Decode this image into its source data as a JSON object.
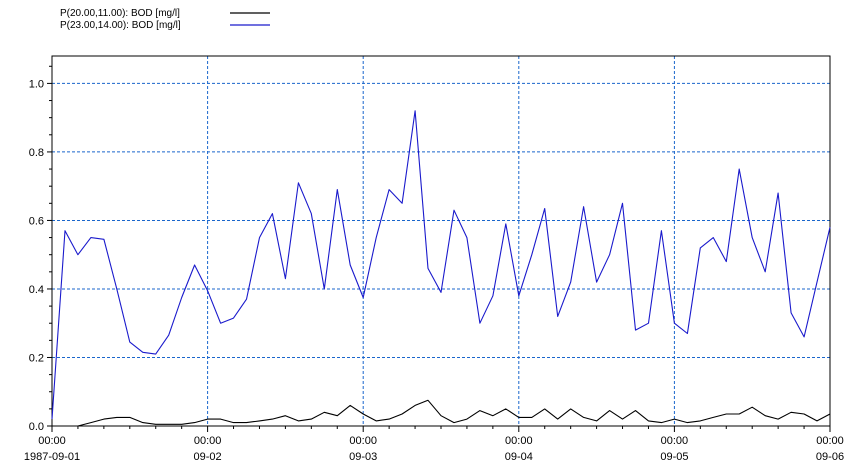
{
  "chart_data": {
    "type": "line",
    "title": "",
    "xlabel": "",
    "ylabel": "",
    "x_range": [
      "1987-09-01T00:00",
      "1987-09-06T00:00"
    ],
    "ylim": [
      0,
      1.08
    ],
    "grid": true,
    "grid_color": "#1a66cc",
    "legend_position": "top-left",
    "y_ticks": [
      {
        "value": 0,
        "label": "0.0"
      },
      {
        "value": 0.2,
        "label": "0.2"
      },
      {
        "value": 0.4,
        "label": "0.4"
      },
      {
        "value": 0.6,
        "label": "0.6"
      },
      {
        "value": 0.8,
        "label": "0.8"
      },
      {
        "value": 1.0,
        "label": "1.0"
      }
    ],
    "x_ticks": [
      {
        "time": "1987-09-01T00:00",
        "time_label": "00:00",
        "date_label": "1987-09-01"
      },
      {
        "time": "1987-09-02T00:00",
        "time_label": "00:00",
        "date_label": "09-02"
      },
      {
        "time": "1987-09-03T00:00",
        "time_label": "00:00",
        "date_label": "09-03"
      },
      {
        "time": "1987-09-04T00:00",
        "time_label": "00:00",
        "date_label": "09-04"
      },
      {
        "time": "1987-09-05T00:00",
        "time_label": "00:00",
        "date_label": "09-05"
      },
      {
        "time": "1987-09-06T00:00",
        "time_label": "00:00",
        "date_label": "09-06"
      }
    ],
    "series": [
      {
        "name": "P(20.00,11.00): BOD [mg/l]",
        "color": "#000000",
        "x": [
          "1987-09-01T00:00",
          "1987-09-01T02:00",
          "1987-09-01T04:00",
          "1987-09-01T06:00",
          "1987-09-01T08:00",
          "1987-09-01T10:00",
          "1987-09-01T12:00",
          "1987-09-01T14:00",
          "1987-09-01T16:00",
          "1987-09-01T18:00",
          "1987-09-01T20:00",
          "1987-09-01T22:00",
          "1987-09-02T00:00",
          "1987-09-02T02:00",
          "1987-09-02T04:00",
          "1987-09-02T06:00",
          "1987-09-02T08:00",
          "1987-09-02T10:00",
          "1987-09-02T12:00",
          "1987-09-02T14:00",
          "1987-09-02T16:00",
          "1987-09-02T18:00",
          "1987-09-02T20:00",
          "1987-09-02T22:00",
          "1987-09-03T00:00",
          "1987-09-03T02:00",
          "1987-09-03T04:00",
          "1987-09-03T06:00",
          "1987-09-03T08:00",
          "1987-09-03T10:00",
          "1987-09-03T12:00",
          "1987-09-03T14:00",
          "1987-09-03T16:00",
          "1987-09-03T18:00",
          "1987-09-03T20:00",
          "1987-09-03T22:00",
          "1987-09-04T00:00",
          "1987-09-04T02:00",
          "1987-09-04T04:00",
          "1987-09-04T06:00",
          "1987-09-04T08:00",
          "1987-09-04T10:00",
          "1987-09-04T12:00",
          "1987-09-04T14:00",
          "1987-09-04T16:00",
          "1987-09-04T18:00",
          "1987-09-04T20:00",
          "1987-09-04T22:00",
          "1987-09-05T00:00",
          "1987-09-05T02:00",
          "1987-09-05T04:00",
          "1987-09-05T06:00",
          "1987-09-05T08:00",
          "1987-09-05T10:00",
          "1987-09-05T12:00",
          "1987-09-05T14:00",
          "1987-09-05T16:00",
          "1987-09-05T18:00",
          "1987-09-05T20:00",
          "1987-09-05T22:00",
          "1987-09-06T00:00"
        ],
        "y": [
          0.0,
          0.0,
          0.0,
          0.01,
          0.02,
          0.025,
          0.025,
          0.01,
          0.005,
          0.005,
          0.005,
          0.01,
          0.02,
          0.02,
          0.01,
          0.01,
          0.015,
          0.02,
          0.03,
          0.015,
          0.02,
          0.04,
          0.03,
          0.06,
          0.035,
          0.015,
          0.02,
          0.035,
          0.06,
          0.075,
          0.03,
          0.01,
          0.02,
          0.045,
          0.03,
          0.05,
          0.025,
          0.025,
          0.05,
          0.02,
          0.05,
          0.025,
          0.015,
          0.045,
          0.02,
          0.045,
          0.015,
          0.01,
          0.02,
          0.01,
          0.015,
          0.025,
          0.035,
          0.035,
          0.055,
          0.03,
          0.02,
          0.04,
          0.035,
          0.015,
          0.035
        ]
      },
      {
        "name": "P(23.00,14.00): BOD [mg/l]",
        "color": "#1a1acc",
        "x": [
          "1987-09-01T00:00",
          "1987-09-01T02:00",
          "1987-09-01T04:00",
          "1987-09-01T06:00",
          "1987-09-01T08:00",
          "1987-09-01T10:00",
          "1987-09-01T12:00",
          "1987-09-01T14:00",
          "1987-09-01T16:00",
          "1987-09-01T18:00",
          "1987-09-01T20:00",
          "1987-09-01T22:00",
          "1987-09-02T00:00",
          "1987-09-02T02:00",
          "1987-09-02T04:00",
          "1987-09-02T06:00",
          "1987-09-02T08:00",
          "1987-09-02T10:00",
          "1987-09-02T12:00",
          "1987-09-02T14:00",
          "1987-09-02T16:00",
          "1987-09-02T18:00",
          "1987-09-02T20:00",
          "1987-09-02T22:00",
          "1987-09-03T00:00",
          "1987-09-03T02:00",
          "1987-09-03T04:00",
          "1987-09-03T06:00",
          "1987-09-03T08:00",
          "1987-09-03T10:00",
          "1987-09-03T12:00",
          "1987-09-03T14:00",
          "1987-09-03T16:00",
          "1987-09-03T18:00",
          "1987-09-03T20:00",
          "1987-09-03T22:00",
          "1987-09-04T00:00",
          "1987-09-04T02:00",
          "1987-09-04T04:00",
          "1987-09-04T06:00",
          "1987-09-04T08:00",
          "1987-09-04T10:00",
          "1987-09-04T12:00",
          "1987-09-04T14:00",
          "1987-09-04T16:00",
          "1987-09-04T18:00",
          "1987-09-04T20:00",
          "1987-09-04T22:00",
          "1987-09-05T00:00",
          "1987-09-05T02:00",
          "1987-09-05T04:00",
          "1987-09-05T06:00",
          "1987-09-05T08:00",
          "1987-09-05T10:00",
          "1987-09-05T12:00",
          "1987-09-05T14:00",
          "1987-09-05T16:00",
          "1987-09-05T18:00",
          "1987-09-05T20:00",
          "1987-09-05T22:00",
          "1987-09-06T00:00"
        ],
        "y": [
          0.02,
          0.57,
          0.5,
          0.55,
          0.545,
          0.4,
          0.245,
          0.215,
          0.21,
          0.265,
          0.375,
          0.47,
          0.395,
          0.3,
          0.315,
          0.37,
          0.55,
          0.62,
          0.43,
          0.71,
          0.62,
          0.4,
          0.69,
          0.47,
          0.375,
          0.55,
          0.69,
          0.65,
          0.92,
          0.46,
          0.39,
          0.63,
          0.55,
          0.3,
          0.38,
          0.59,
          0.38,
          0.5,
          0.635,
          0.32,
          0.42,
          0.64,
          0.42,
          0.5,
          0.65,
          0.28,
          0.3,
          0.57,
          0.3,
          0.27,
          0.52,
          0.55,
          0.48,
          0.75,
          0.55,
          0.45,
          0.68,
          0.33,
          0.26,
          0.42,
          0.58
        ]
      }
    ]
  }
}
